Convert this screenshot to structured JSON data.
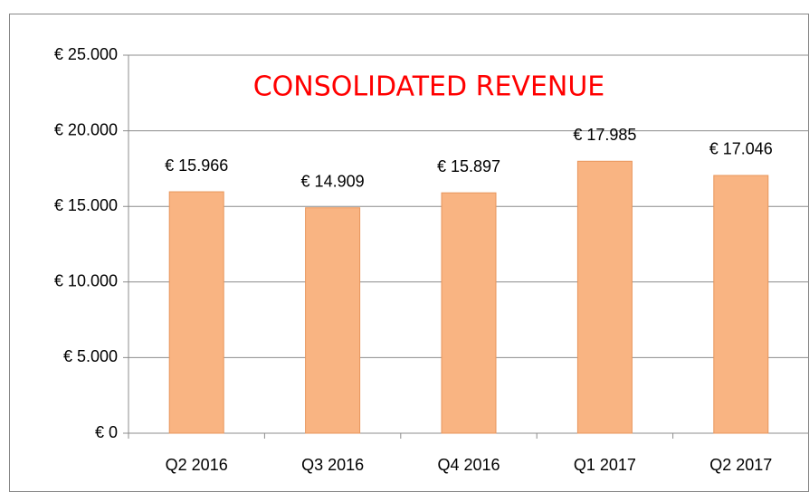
{
  "chart_data": {
    "type": "bar",
    "title": "CONSOLIDATED REVENUE",
    "categories": [
      "Q2 2016",
      "Q3 2016",
      "Q4 2016",
      "Q1 2017",
      "Q2 2017"
    ],
    "values": [
      15966,
      14909,
      15897,
      17985,
      17046
    ],
    "value_labels": [
      "€ 15.966",
      "€ 14.909",
      "€ 15.897",
      "€ 17.985",
      "€ 17.046"
    ],
    "color": "#f9b482",
    "ylim": [
      0,
      25000
    ],
    "yticks": [
      {
        "value": 0,
        "label": "€ 0"
      },
      {
        "value": 5000,
        "label": "€ 5.000"
      },
      {
        "value": 10000,
        "label": "€ 10.000"
      },
      {
        "value": 15000,
        "label": "€ 15.000"
      },
      {
        "value": 20000,
        "label": "€ 20.000"
      },
      {
        "value": 25000,
        "label": "€ 25.000"
      }
    ],
    "grid": true
  }
}
